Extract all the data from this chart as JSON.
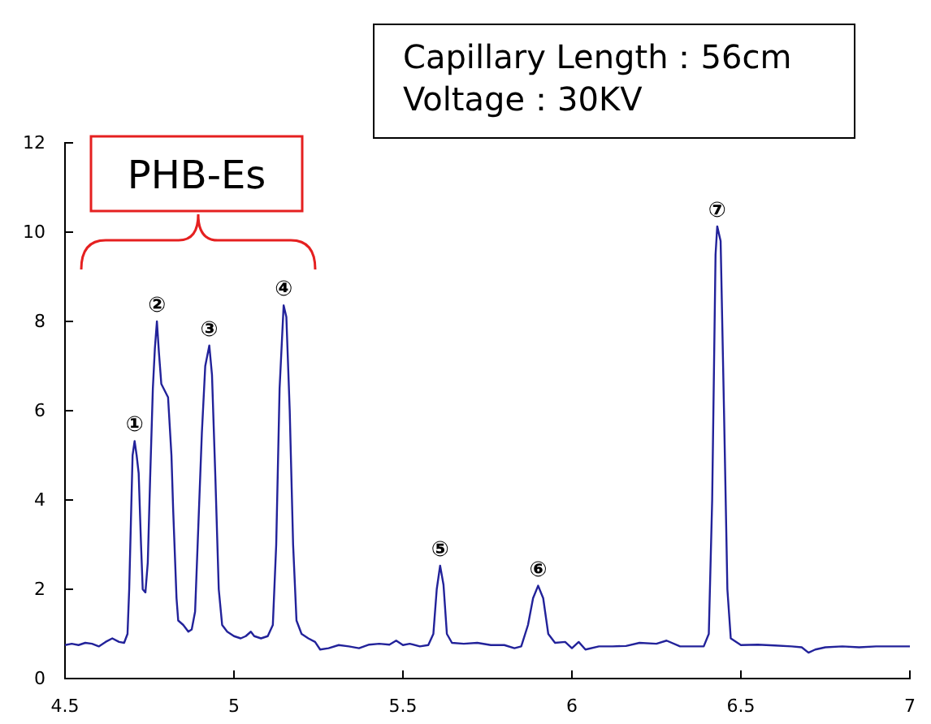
{
  "chart_data": {
    "type": "line",
    "x": [
      4.5,
      4.52,
      4.54,
      4.56,
      4.58,
      4.6,
      4.62,
      4.64,
      4.66,
      4.675,
      4.685,
      4.69,
      4.695,
      4.7,
      4.706,
      4.712,
      4.718,
      4.725,
      4.73,
      4.738,
      4.745,
      4.752,
      4.76,
      4.766,
      4.772,
      4.778,
      4.785,
      4.795,
      4.805,
      4.815,
      4.82,
      4.83,
      4.835,
      4.85,
      4.865,
      4.875,
      4.885,
      4.895,
      4.905,
      4.915,
      4.927,
      4.935,
      4.945,
      4.955,
      4.965,
      4.98,
      5.0,
      5.02,
      5.035,
      5.05,
      5.06,
      5.08,
      5.1,
      5.115,
      5.125,
      5.135,
      5.147,
      5.155,
      5.165,
      5.175,
      5.185,
      5.2,
      5.22,
      5.24,
      5.255,
      5.28,
      5.31,
      5.34,
      5.37,
      5.4,
      5.43,
      5.46,
      5.48,
      5.5,
      5.52,
      5.55,
      5.575,
      5.59,
      5.6,
      5.61,
      5.62,
      5.63,
      5.645,
      5.68,
      5.72,
      5.76,
      5.8,
      5.83,
      5.85,
      5.87,
      5.885,
      5.9,
      5.915,
      5.93,
      5.95,
      5.98,
      6.0,
      6.02,
      6.04,
      6.08,
      6.12,
      6.16,
      6.2,
      6.25,
      6.28,
      6.32,
      6.36,
      6.39,
      6.405,
      6.415,
      6.425,
      6.43,
      6.44,
      6.45,
      6.46,
      6.47,
      6.5,
      6.55,
      6.6,
      6.65,
      6.68,
      6.7,
      6.72,
      6.75,
      6.8,
      6.85,
      6.9,
      6.95,
      7.0
    ],
    "series": [
      {
        "color": "#22229a",
        "values": [
          0.75,
          0.78,
          0.75,
          0.8,
          0.78,
          0.72,
          0.82,
          0.9,
          0.82,
          0.8,
          1.0,
          2.0,
          3.5,
          5.0,
          5.32,
          5.0,
          4.6,
          3.0,
          2.0,
          1.93,
          2.6,
          4.5,
          6.5,
          7.4,
          8.0,
          7.3,
          6.6,
          6.45,
          6.3,
          5.0,
          3.8,
          1.8,
          1.3,
          1.2,
          1.05,
          1.1,
          1.5,
          3.5,
          5.5,
          7.0,
          7.46,
          6.8,
          4.5,
          2.0,
          1.2,
          1.05,
          0.95,
          0.9,
          0.95,
          1.05,
          0.95,
          0.9,
          0.95,
          1.2,
          3.0,
          6.5,
          8.36,
          8.1,
          6.0,
          3.0,
          1.3,
          1.0,
          0.9,
          0.82,
          0.65,
          0.68,
          0.75,
          0.72,
          0.68,
          0.76,
          0.78,
          0.76,
          0.85,
          0.75,
          0.78,
          0.72,
          0.75,
          1.0,
          2.0,
          2.53,
          2.1,
          1.0,
          0.8,
          0.78,
          0.8,
          0.75,
          0.75,
          0.68,
          0.72,
          1.2,
          1.8,
          2.08,
          1.8,
          1.0,
          0.8,
          0.82,
          0.68,
          0.82,
          0.65,
          0.72,
          0.72,
          0.73,
          0.8,
          0.78,
          0.85,
          0.72,
          0.72,
          0.72,
          1.0,
          4.0,
          9.5,
          10.13,
          9.8,
          6.0,
          2.0,
          0.9,
          0.75,
          0.76,
          0.74,
          0.72,
          0.7,
          0.58,
          0.65,
          0.7,
          0.72,
          0.7,
          0.72,
          0.72,
          0.72
        ]
      }
    ],
    "xlim": [
      4.5,
      7
    ],
    "xticks": [
      4.5,
      5,
      5.5,
      6,
      6.5,
      7
    ],
    "ylim": [
      0,
      12
    ],
    "yticks": [
      0,
      2,
      4,
      6,
      8,
      10,
      12
    ],
    "grid": false,
    "marker": "none",
    "line_style": "solid",
    "annotations": [
      "Capillary Length：56cm\nVoltage：30KV",
      "PHB-Es",
      {
        "text": "①",
        "x": 4.706,
        "y": 5.32
      },
      {
        "text": "②",
        "x": 4.772,
        "y": 8.0
      },
      {
        "text": "③",
        "x": 4.927,
        "y": 7.46
      },
      {
        "text": "④",
        "x": 5.147,
        "y": 8.36
      },
      {
        "text": "⑤",
        "x": 5.61,
        "y": 2.53
      },
      {
        "text": "⑥",
        "x": 5.9,
        "y": 2.08
      },
      {
        "text": "⑦",
        "x": 6.43,
        "y": 10.13
      }
    ]
  }
}
